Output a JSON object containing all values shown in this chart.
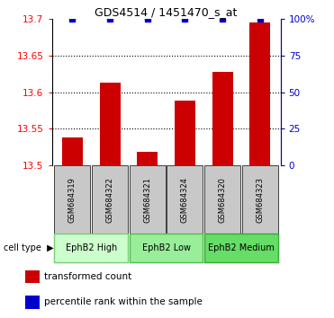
{
  "title": "GDS4514 / 1451470_s_at",
  "samples": [
    "GSM684319",
    "GSM684322",
    "GSM684321",
    "GSM684324",
    "GSM684320",
    "GSM684323"
  ],
  "red_values": [
    13.538,
    13.613,
    13.519,
    13.588,
    13.628,
    13.695
  ],
  "blue_values": [
    100,
    100,
    100,
    100,
    100,
    100
  ],
  "ylim_left": [
    13.5,
    13.7
  ],
  "ylim_right": [
    0,
    100
  ],
  "yticks_left": [
    13.5,
    13.55,
    13.6,
    13.65,
    13.7
  ],
  "yticks_right": [
    0,
    25,
    50,
    75,
    100
  ],
  "ytick_labels_right": [
    "0",
    "25",
    "50",
    "75",
    "100%"
  ],
  "bar_color": "#cc0000",
  "dot_color": "#0000cc",
  "sample_box_color": "#c8c8c8",
  "groups": [
    {
      "label": "EphB2 High",
      "start": 0,
      "end": 1,
      "fc": "#ccffcc",
      "ec": "#77cc77"
    },
    {
      "label": "EphB2 Low",
      "start": 2,
      "end": 3,
      "fc": "#99ee99",
      "ec": "#55bb55"
    },
    {
      "label": "EphB2 Medium",
      "start": 4,
      "end": 5,
      "fc": "#66dd66",
      "ec": "#33aa33"
    }
  ],
  "legend_red_label": "transformed count",
  "legend_blue_label": "percentile rank within the sample",
  "cell_type_label": "cell type",
  "arrow_char": "▶",
  "bar_width": 0.55
}
